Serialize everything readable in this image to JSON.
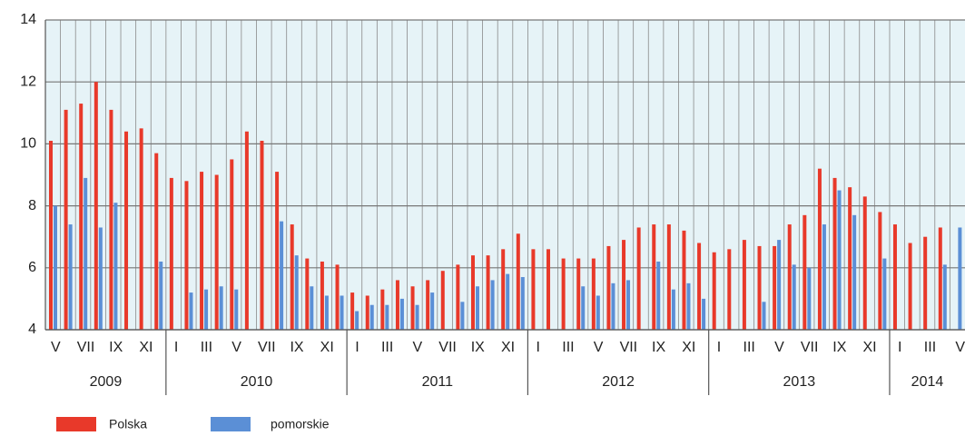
{
  "chart_data": {
    "type": "bar",
    "categories": [
      "V",
      null,
      "VII",
      null,
      "IX",
      null,
      "XI",
      null,
      "I",
      null,
      "III",
      null,
      "V",
      null,
      "VII",
      null,
      "IX",
      null,
      "XI",
      null,
      "I",
      null,
      "III",
      null,
      "V",
      null,
      "VII",
      null,
      "IX",
      null,
      "XI",
      null,
      "I",
      null,
      "III",
      null,
      "V",
      null,
      "VII",
      null,
      "IX",
      null,
      "XI",
      null,
      "I",
      null,
      "III",
      null,
      "V",
      null,
      "VII",
      null,
      "IX",
      null,
      "XI",
      null,
      "I",
      null,
      "III",
      null,
      "V"
    ],
    "years": [
      "2009",
      "2010",
      "2011",
      "2012",
      "2013",
      "2014"
    ],
    "series": [
      {
        "name": "Polska",
        "color": "#e8392a",
        "values": [
          10.1,
          11.1,
          11.3,
          12.0,
          11.1,
          10.4,
          10.5,
          9.7,
          8.9,
          8.8,
          9.1,
          9.0,
          9.5,
          10.4,
          10.1,
          9.1,
          7.4,
          6.3,
          6.2,
          6.1,
          5.2,
          5.1,
          5.3,
          5.6,
          5.4,
          5.6,
          5.9,
          6.1,
          6.4,
          6.4,
          6.6,
          7.1,
          6.6,
          6.6,
          6.3,
          6.3,
          6.3,
          6.7,
          6.9,
          7.3,
          7.4,
          7.4,
          7.2,
          6.8,
          6.5,
          6.6,
          6.9,
          6.7,
          6.7,
          7.4,
          7.7,
          9.2,
          8.9,
          8.6,
          8.3,
          7.8,
          7.4,
          6.8,
          7.0,
          7.3,
          null
        ]
      },
      {
        "name": "pomorskie",
        "color": "#5b8fd6",
        "values": [
          8.0,
          7.4,
          8.9,
          7.3,
          8.1,
          null,
          null,
          6.2,
          null,
          5.2,
          5.3,
          5.4,
          5.3,
          null,
          null,
          7.5,
          6.4,
          5.4,
          5.1,
          5.1,
          4.6,
          4.8,
          4.8,
          5.0,
          4.8,
          5.2,
          null,
          4.9,
          5.4,
          5.6,
          5.8,
          5.7,
          null,
          null,
          null,
          5.4,
          5.1,
          5.5,
          5.6,
          null,
          6.2,
          5.3,
          5.5,
          5.0,
          null,
          null,
          null,
          4.9,
          6.9,
          6.1,
          6.0,
          7.4,
          8.5,
          7.7,
          null,
          6.3,
          null,
          null,
          null,
          6.1,
          7.3
        ]
      }
    ],
    "ylim": [
      4,
      14
    ],
    "yticks": [
      4,
      6,
      8,
      10,
      12,
      14
    ],
    "grid": true,
    "background": "#e6f3f7"
  }
}
